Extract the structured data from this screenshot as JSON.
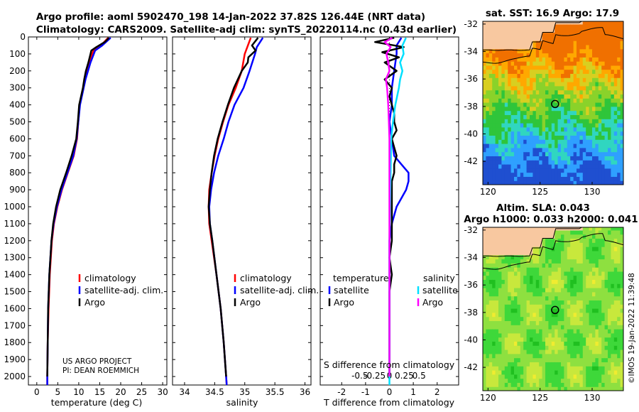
{
  "header": {
    "line1": "Argo profile: aoml 5902470_198 14-Jan-2022 37.82S 126.44E (NRT data)",
    "line2": "Climatology: CARS2009. Satellite-adj clim: synTS_20220114.nc (0.43d earlier)"
  },
  "credit": {
    "line1": "US ARGO PROJECT",
    "line2": "PI: DEAN ROEMMICH"
  },
  "watermark": "©IMOS 19-Jan-2022 11:39:48",
  "colors": {
    "climatology": "#ff0000",
    "satellite": "#0000ff",
    "argo": "#000000",
    "sat_salinity": "#00e0ff",
    "argo_salinity": "#ff00ff",
    "land": "#f8c8a0"
  },
  "chart_data": [
    {
      "id": "temperature",
      "type": "line",
      "xlabel": "temperature (deg C)",
      "ylabel": "",
      "xlim": [
        -2,
        31
      ],
      "ylim": [
        2050,
        0
      ],
      "xticks": [
        0,
        5,
        10,
        15,
        20,
        25,
        30
      ],
      "yticks": [
        0,
        100,
        200,
        300,
        400,
        500,
        600,
        700,
        800,
        900,
        1000,
        1100,
        1200,
        1300,
        1400,
        1500,
        1600,
        1700,
        1800,
        1900,
        2000
      ],
      "legend": [
        "climatology",
        "satellite-adj. clim.",
        "Argo"
      ],
      "series": [
        {
          "name": "climatology",
          "color": "#ff0000",
          "depth": [
            5,
            50,
            80,
            150,
            250,
            400,
            500,
            600,
            700,
            800,
            900,
            1000,
            1100,
            1200,
            1400,
            1600,
            1800,
            2000,
            2050
          ],
          "values": [
            17.0,
            15.3,
            13.5,
            12.5,
            11.5,
            10.2,
            9.9,
            9.6,
            8.8,
            7.4,
            6.0,
            4.9,
            4.1,
            3.6,
            3.1,
            2.8,
            2.6,
            2.5,
            2.5
          ]
        },
        {
          "name": "satellite-adj. clim.",
          "color": "#0000ff",
          "depth": [
            5,
            50,
            80,
            150,
            250,
            400,
            500,
            600,
            700,
            800,
            900,
            1000,
            1100,
            1200,
            1400,
            1600,
            1800,
            2000,
            2050
          ],
          "values": [
            17.6,
            15.6,
            13.9,
            12.8,
            11.6,
            10.3,
            9.9,
            9.5,
            8.7,
            7.3,
            5.9,
            4.8,
            4.0,
            3.5,
            3.0,
            2.7,
            2.6,
            2.5,
            2.5
          ]
        },
        {
          "name": "Argo",
          "color": "#000000",
          "depth": [
            5,
            30,
            60,
            80,
            100,
            150,
            200,
            250,
            300,
            400,
            500,
            600,
            700,
            800,
            900,
            1000,
            1100,
            1200,
            1400,
            1600,
            1800,
            2000
          ],
          "values": [
            17.2,
            16.2,
            14.2,
            13.0,
            12.8,
            12.3,
            11.7,
            11.3,
            11.0,
            10.1,
            9.8,
            9.4,
            8.3,
            7.0,
            5.6,
            4.6,
            3.9,
            3.5,
            3.0,
            2.7,
            2.6,
            2.5
          ]
        }
      ]
    },
    {
      "id": "salinity",
      "type": "line",
      "xlabel": "salinity",
      "xlim": [
        33.8,
        36.1
      ],
      "ylim": [
        2050,
        0
      ],
      "xticks": [
        34,
        34.5,
        35,
        35.5,
        36
      ],
      "xticklabels": [
        "34",
        "34.5",
        "35",
        "35.5",
        "36"
      ],
      "legend": [
        "climatology",
        "satellite-adj. clim.",
        "Argo"
      ],
      "series": [
        {
          "name": "climatology",
          "color": "#ff0000",
          "depth": [
            5,
            100,
            200,
            300,
            400,
            500,
            600,
            700,
            800,
            900,
            1000,
            1100,
            1200,
            1400,
            1600,
            1800,
            2000,
            2050
          ],
          "values": [
            35.1,
            35.0,
            34.95,
            34.85,
            34.73,
            34.64,
            34.56,
            34.5,
            34.45,
            34.41,
            34.4,
            34.41,
            34.45,
            34.53,
            34.6,
            34.65,
            34.69,
            34.7
          ]
        },
        {
          "name": "satellite-adj. clim.",
          "color": "#0000ff",
          "depth": [
            5,
            60,
            100,
            200,
            300,
            400,
            500,
            600,
            700,
            800,
            900,
            1000,
            1100,
            1200,
            1400,
            1600,
            1800,
            2000,
            2050
          ],
          "values": [
            35.3,
            35.2,
            35.17,
            35.08,
            34.98,
            34.83,
            34.73,
            34.65,
            34.56,
            34.49,
            34.44,
            34.41,
            34.42,
            34.46,
            34.53,
            34.6,
            34.65,
            34.69,
            34.7
          ]
        },
        {
          "name": "Argo",
          "color": "#000000",
          "depth": [
            5,
            50,
            80,
            120,
            150,
            200,
            300,
            400,
            500,
            600,
            700,
            800,
            900,
            1000,
            1100,
            1200,
            1400,
            1600,
            1800,
            2000
          ],
          "values": [
            35.22,
            35.12,
            35.18,
            35.06,
            35.05,
            34.95,
            34.82,
            34.72,
            34.63,
            34.55,
            34.49,
            34.45,
            34.42,
            34.4,
            34.42,
            34.46,
            34.53,
            34.6,
            34.65,
            34.69
          ]
        }
      ]
    },
    {
      "id": "difference",
      "type": "line",
      "xlabel": "T difference from climatology",
      "xlabel_top": "S difference from climatology",
      "xlim": [
        -2.9,
        2.9
      ],
      "ylim": [
        2050,
        0
      ],
      "xticks": [
        -2,
        -1,
        0,
        1,
        2
      ],
      "sticks": [
        "-0.5",
        "-0.25",
        "0",
        "0.25",
        "0.5"
      ],
      "legend_titles": [
        "temperature",
        "salinity"
      ],
      "legend": [
        "satellite",
        "Argo",
        "satellite",
        "Argo"
      ],
      "series": [
        {
          "name": "T satellite",
          "color": "#0000ff",
          "depth": [
            5,
            50,
            100,
            200,
            300,
            400,
            500,
            600,
            700,
            750,
            800,
            850,
            900,
            950,
            1000,
            1100,
            1200,
            1400,
            1600,
            1800,
            2000
          ],
          "values": [
            0.5,
            0.3,
            0.3,
            0.2,
            0.1,
            0.1,
            0.0,
            0.1,
            0.2,
            0.5,
            0.8,
            0.8,
            0.7,
            0.5,
            0.3,
            0.1,
            0.0,
            0.0,
            0.0,
            0.0,
            0.0
          ]
        },
        {
          "name": "T Argo",
          "color": "#000000",
          "depth": [
            5,
            30,
            60,
            90,
            120,
            150,
            200,
            250,
            300,
            350,
            400,
            450,
            500,
            550,
            600,
            650,
            700,
            750,
            800,
            850,
            900,
            950,
            1000,
            1050,
            1100,
            1150,
            1200,
            1300,
            1400,
            1500,
            1600,
            1700,
            1800,
            1900,
            2000
          ],
          "values": [
            0.2,
            -0.6,
            0.6,
            -0.3,
            0.4,
            -0.2,
            0.3,
            -0.2,
            0.1,
            0.0,
            0.1,
            0.2,
            0.2,
            0.3,
            0.1,
            0.2,
            0.3,
            0.2,
            0.2,
            0.1,
            0.1,
            0.1,
            0.1,
            0.1,
            0.1,
            0.1,
            0.1,
            0.0,
            0.1,
            0.0,
            0.0,
            0.0,
            0.0,
            0.0,
            0.0
          ]
        },
        {
          "name": "S satellite",
          "color": "#00e0ff",
          "depth": [
            5,
            50,
            100,
            150,
            200,
            250,
            300,
            400,
            500,
            600,
            800,
            1000,
            1200,
            1600,
            2000,
            2050
          ],
          "values": [
            0.28,
            0.22,
            0.24,
            0.18,
            0.22,
            0.18,
            0.16,
            0.1,
            0.06,
            0.03,
            0.02,
            0.01,
            0.0,
            0.0,
            0.0,
            0.0
          ]
        },
        {
          "name": "S Argo",
          "color": "#ff00ff",
          "depth": [
            5,
            30,
            60,
            100,
            150,
            200,
            250,
            300,
            400,
            500,
            600,
            800,
            1000,
            1200,
            1600,
            2000
          ],
          "values": [
            0.05,
            -0.08,
            0.02,
            -0.05,
            -0.02,
            0.0,
            -0.06,
            -0.04,
            -0.02,
            -0.01,
            0.0,
            0.0,
            0.0,
            0.0,
            0.0,
            0.0
          ]
        }
      ]
    },
    {
      "id": "sst_map",
      "type": "heatmap",
      "title": "sat. SST: 16.9 Argo: 17.9",
      "xlim": [
        119.5,
        133
      ],
      "ylim": [
        -43.7,
        -31.8
      ],
      "xticks": [
        120,
        125,
        130
      ],
      "yticks": [
        -32,
        -34,
        -36,
        -38,
        -40,
        -42
      ],
      "float_position": [
        126.44,
        -37.82
      ]
    },
    {
      "id": "sla_map",
      "type": "heatmap",
      "title1": "Altim. SLA: 0.043",
      "title2": "Argo h1000: 0.033 h2000: 0.041",
      "xlim": [
        119.5,
        133
      ],
      "ylim": [
        -43.7,
        -31.8
      ],
      "xticks": [
        120,
        125,
        130
      ],
      "yticks": [
        -32,
        -34,
        -36,
        -38,
        -40,
        -42
      ],
      "float_position": [
        126.44,
        -37.82
      ]
    }
  ]
}
